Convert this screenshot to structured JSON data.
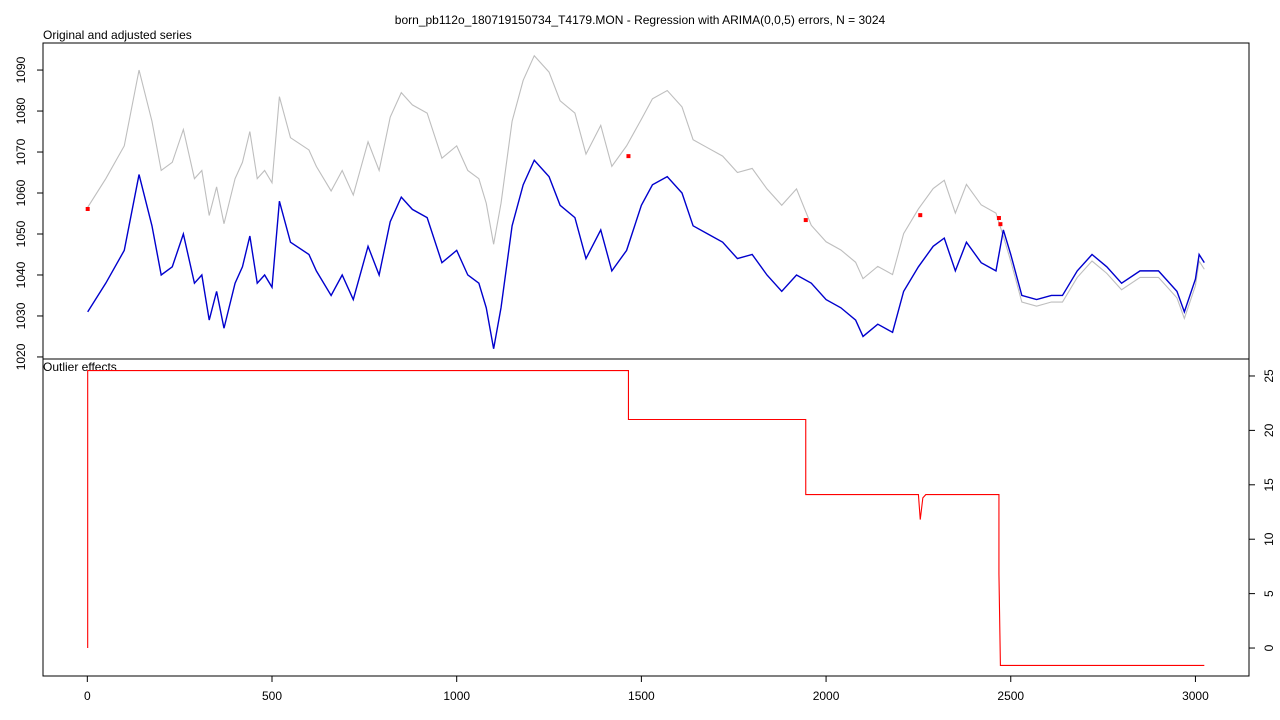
{
  "title": "born_pb112o_180719150734_T4179.MON - Regression with ARIMA(0,0,5) errors, N = 3024",
  "chart_data": [
    {
      "type": "line",
      "subtitle": "Original and adjusted series",
      "xlim": [
        -120,
        3145
      ],
      "ylim": [
        1019.5,
        1096.6
      ],
      "yticks": [
        1020,
        1030,
        1040,
        1050,
        1060,
        1070,
        1080,
        1090
      ],
      "series": [
        {
          "style": "line",
          "color": "#bebebe",
          "x": [
            1,
            50,
            100,
            140,
            175,
            200,
            230,
            260,
            290,
            310,
            330,
            350,
            370,
            400,
            420,
            440,
            460,
            480,
            500,
            520,
            550,
            600,
            620,
            660,
            690,
            720,
            760,
            790,
            820,
            850,
            880,
            920,
            960,
            1000,
            1030,
            1060,
            1080,
            1100,
            1120,
            1150,
            1180,
            1210,
            1250,
            1280,
            1320,
            1350,
            1390,
            1420,
            1460,
            1500,
            1530,
            1570,
            1610,
            1640,
            1680,
            1720,
            1760,
            1800,
            1840,
            1880,
            1920,
            1960,
            2000,
            2040,
            2080,
            2100,
            2140,
            2180,
            2210,
            2250,
            2290,
            2320,
            2350,
            2380,
            2420,
            2460,
            2480,
            2500,
            2530,
            2570,
            2610,
            2640,
            2680,
            2720,
            2760,
            2800,
            2850,
            2900,
            2950,
            2970,
            3000,
            3010,
            3024
          ],
          "values": [
            1056.5,
            1063.5,
            1071.5,
            1090,
            1077.5,
            1065.5,
            1067.5,
            1075.5,
            1063.5,
            1065.5,
            1054.5,
            1061.5,
            1052.5,
            1063.5,
            1067.5,
            1075,
            1063.5,
            1065.5,
            1062.5,
            1083.5,
            1073.5,
            1070.5,
            1066.5,
            1060.5,
            1065.5,
            1059.5,
            1072.5,
            1065.5,
            1078.5,
            1084.5,
            1081.5,
            1079.5,
            1068.5,
            1071.5,
            1065.5,
            1063.5,
            1057.5,
            1047.5,
            1057.5,
            1077.5,
            1087.5,
            1093.5,
            1089.5,
            1082.5,
            1079.5,
            1069.5,
            1076.5,
            1066.5,
            1071.5,
            1078,
            1083,
            1085,
            1081,
            1073,
            1071,
            1069,
            1065,
            1066,
            1061,
            1057,
            1061,
            1052.1,
            1048.1,
            1046.1,
            1043.1,
            1039.1,
            1042.1,
            1040.1,
            1050.1,
            1056.1,
            1061.1,
            1063.1,
            1055.1,
            1062.1,
            1057.1,
            1055.1,
            1049.4,
            1043.4,
            1033.4,
            1032.4,
            1033.4,
            1033.4,
            1039.4,
            1043.4,
            1040.4,
            1036.4,
            1039.4,
            1039.4,
            1034.4,
            1029.4,
            1037.4,
            1043.4,
            1041.4
          ]
        },
        {
          "style": "line",
          "color": "#0000cd",
          "x": [
            1,
            50,
            100,
            140,
            175,
            200,
            230,
            260,
            290,
            310,
            330,
            350,
            370,
            400,
            420,
            440,
            460,
            480,
            500,
            520,
            550,
            600,
            620,
            660,
            690,
            720,
            760,
            790,
            820,
            850,
            880,
            920,
            960,
            1000,
            1030,
            1060,
            1080,
            1100,
            1120,
            1150,
            1180,
            1210,
            1250,
            1280,
            1320,
            1350,
            1390,
            1420,
            1460,
            1500,
            1530,
            1570,
            1610,
            1640,
            1680,
            1720,
            1760,
            1800,
            1840,
            1880,
            1920,
            1960,
            2000,
            2040,
            2080,
            2100,
            2140,
            2180,
            2210,
            2250,
            2290,
            2320,
            2350,
            2380,
            2420,
            2460,
            2480,
            2500,
            2530,
            2570,
            2610,
            2640,
            2680,
            2720,
            2760,
            2800,
            2850,
            2900,
            2950,
            2970,
            3000,
            3010,
            3024
          ],
          "values": [
            1031,
            1038,
            1046,
            1064.5,
            1052,
            1040,
            1042,
            1050,
            1038,
            1040,
            1029,
            1036,
            1027,
            1038,
            1042,
            1049.5,
            1038,
            1040,
            1037,
            1058,
            1048,
            1045,
            1041,
            1035,
            1040,
            1034,
            1047,
            1040,
            1053,
            1059,
            1056,
            1054,
            1043,
            1046,
            1040,
            1038,
            1032,
            1022,
            1032,
            1052,
            1062,
            1068,
            1064,
            1057,
            1054,
            1044,
            1051,
            1041,
            1046,
            1057,
            1062,
            1064,
            1060,
            1052,
            1050,
            1048,
            1044,
            1045,
            1040,
            1036,
            1040,
            1038,
            1034,
            1032,
            1029,
            1025,
            1028,
            1026,
            1036,
            1042,
            1047,
            1049,
            1041,
            1048,
            1043,
            1041,
            1051,
            1045,
            1035,
            1034,
            1035,
            1035,
            1041,
            1045,
            1042,
            1038,
            1041,
            1041,
            1036,
            1031,
            1039,
            1045,
            1043
          ]
        },
        {
          "style": "points",
          "color": "#ff0000",
          "x": [
            1,
            1465,
            1945,
            2255,
            2468,
            2472
          ],
          "values": [
            1056.1,
            1069,
            1053.4,
            1054.6,
            1053.9,
            1052.4
          ]
        }
      ]
    },
    {
      "type": "line",
      "subtitle": "Outlier effects",
      "xlim": [
        -120,
        3145
      ],
      "ylim": [
        -2.57,
        26.56
      ],
      "xticks": [
        0,
        500,
        1000,
        1500,
        2000,
        2500,
        3000
      ],
      "yticks": [
        0,
        5,
        10,
        15,
        20,
        25
      ],
      "series": [
        {
          "style": "line",
          "color": "#ff0000",
          "x": [
            1,
            1,
            1465,
            1465,
            1945,
            1945,
            2250,
            2255,
            2262,
            2270,
            2468,
            2468,
            2472,
            3024
          ],
          "values": [
            0,
            25.5,
            25.5,
            21,
            21,
            14.1,
            14.1,
            11.8,
            13.8,
            14.1,
            14.1,
            6.8,
            -1.6,
            -1.6
          ]
        }
      ]
    }
  ]
}
